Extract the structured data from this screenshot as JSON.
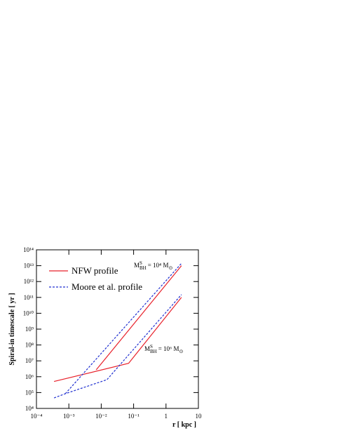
{
  "chart_data": {
    "type": "line",
    "x_label": "r [ kpc ]",
    "y_label": "Spiral-in timescale [ yr ]",
    "log_x": true,
    "log_y": true,
    "grid": false,
    "legend_position": "upper-left",
    "xlim": [
      0.0001,
      10
    ],
    "ylim": [
      10000,
      100000000000000
    ],
    "xticks": [
      {
        "value": 0.0001,
        "label": "10⁻⁴"
      },
      {
        "value": 0.001,
        "label": "10⁻³"
      },
      {
        "value": 0.01,
        "label": "10⁻²"
      },
      {
        "value": 0.1,
        "label": "10⁻¹"
      },
      1,
      10
    ],
    "yticks": [
      {
        "value": 10000,
        "label": "10⁴"
      },
      {
        "value": 100000,
        "label": "10⁵"
      },
      {
        "value": 1000000,
        "label": "10⁶"
      },
      {
        "value": 10000000,
        "label": "10⁷"
      },
      {
        "value": 100000000,
        "label": "10⁸"
      },
      {
        "value": 1000000000,
        "label": "10⁹"
      },
      {
        "value": 10000000000,
        "label": "10¹⁰"
      },
      {
        "value": 100000000000,
        "label": "10¹¹"
      },
      {
        "value": 1000000000000,
        "label": "10¹²"
      },
      {
        "value": 10000000000000,
        "label": "10¹³"
      },
      {
        "value": 100000000000000,
        "label": "10¹⁴"
      }
    ],
    "series": [
      {
        "name": "NFW profile",
        "color": "#e8202a",
        "dash": false,
        "x": [
          0.00035,
          0.07,
          3,
          null,
          0.007,
          3
        ],
        "values": [
          500000,
          7000000,
          100000000000,
          null,
          2700000,
          10000000000000
        ]
      },
      {
        "name": "Moore et al. profile",
        "color": "#2030d0",
        "dash": true,
        "x": [
          0.00035,
          0.00078,
          0.015,
          3,
          null,
          0.00078,
          3
        ],
        "values": [
          46000,
          85000,
          650000,
          150000000000,
          null,
          85000,
          14000000000000
        ]
      }
    ],
    "annotations": [
      {
        "symbol": "M",
        "sup": "S",
        "sub": "BH",
        "rhs": "= 10⁴ M",
        "unit_sub": "⊙"
      },
      {
        "symbol": "M",
        "sup": "S",
        "sub": "BH",
        "rhs": "= 10⁶ M",
        "unit_sub": "⊙"
      }
    ]
  }
}
